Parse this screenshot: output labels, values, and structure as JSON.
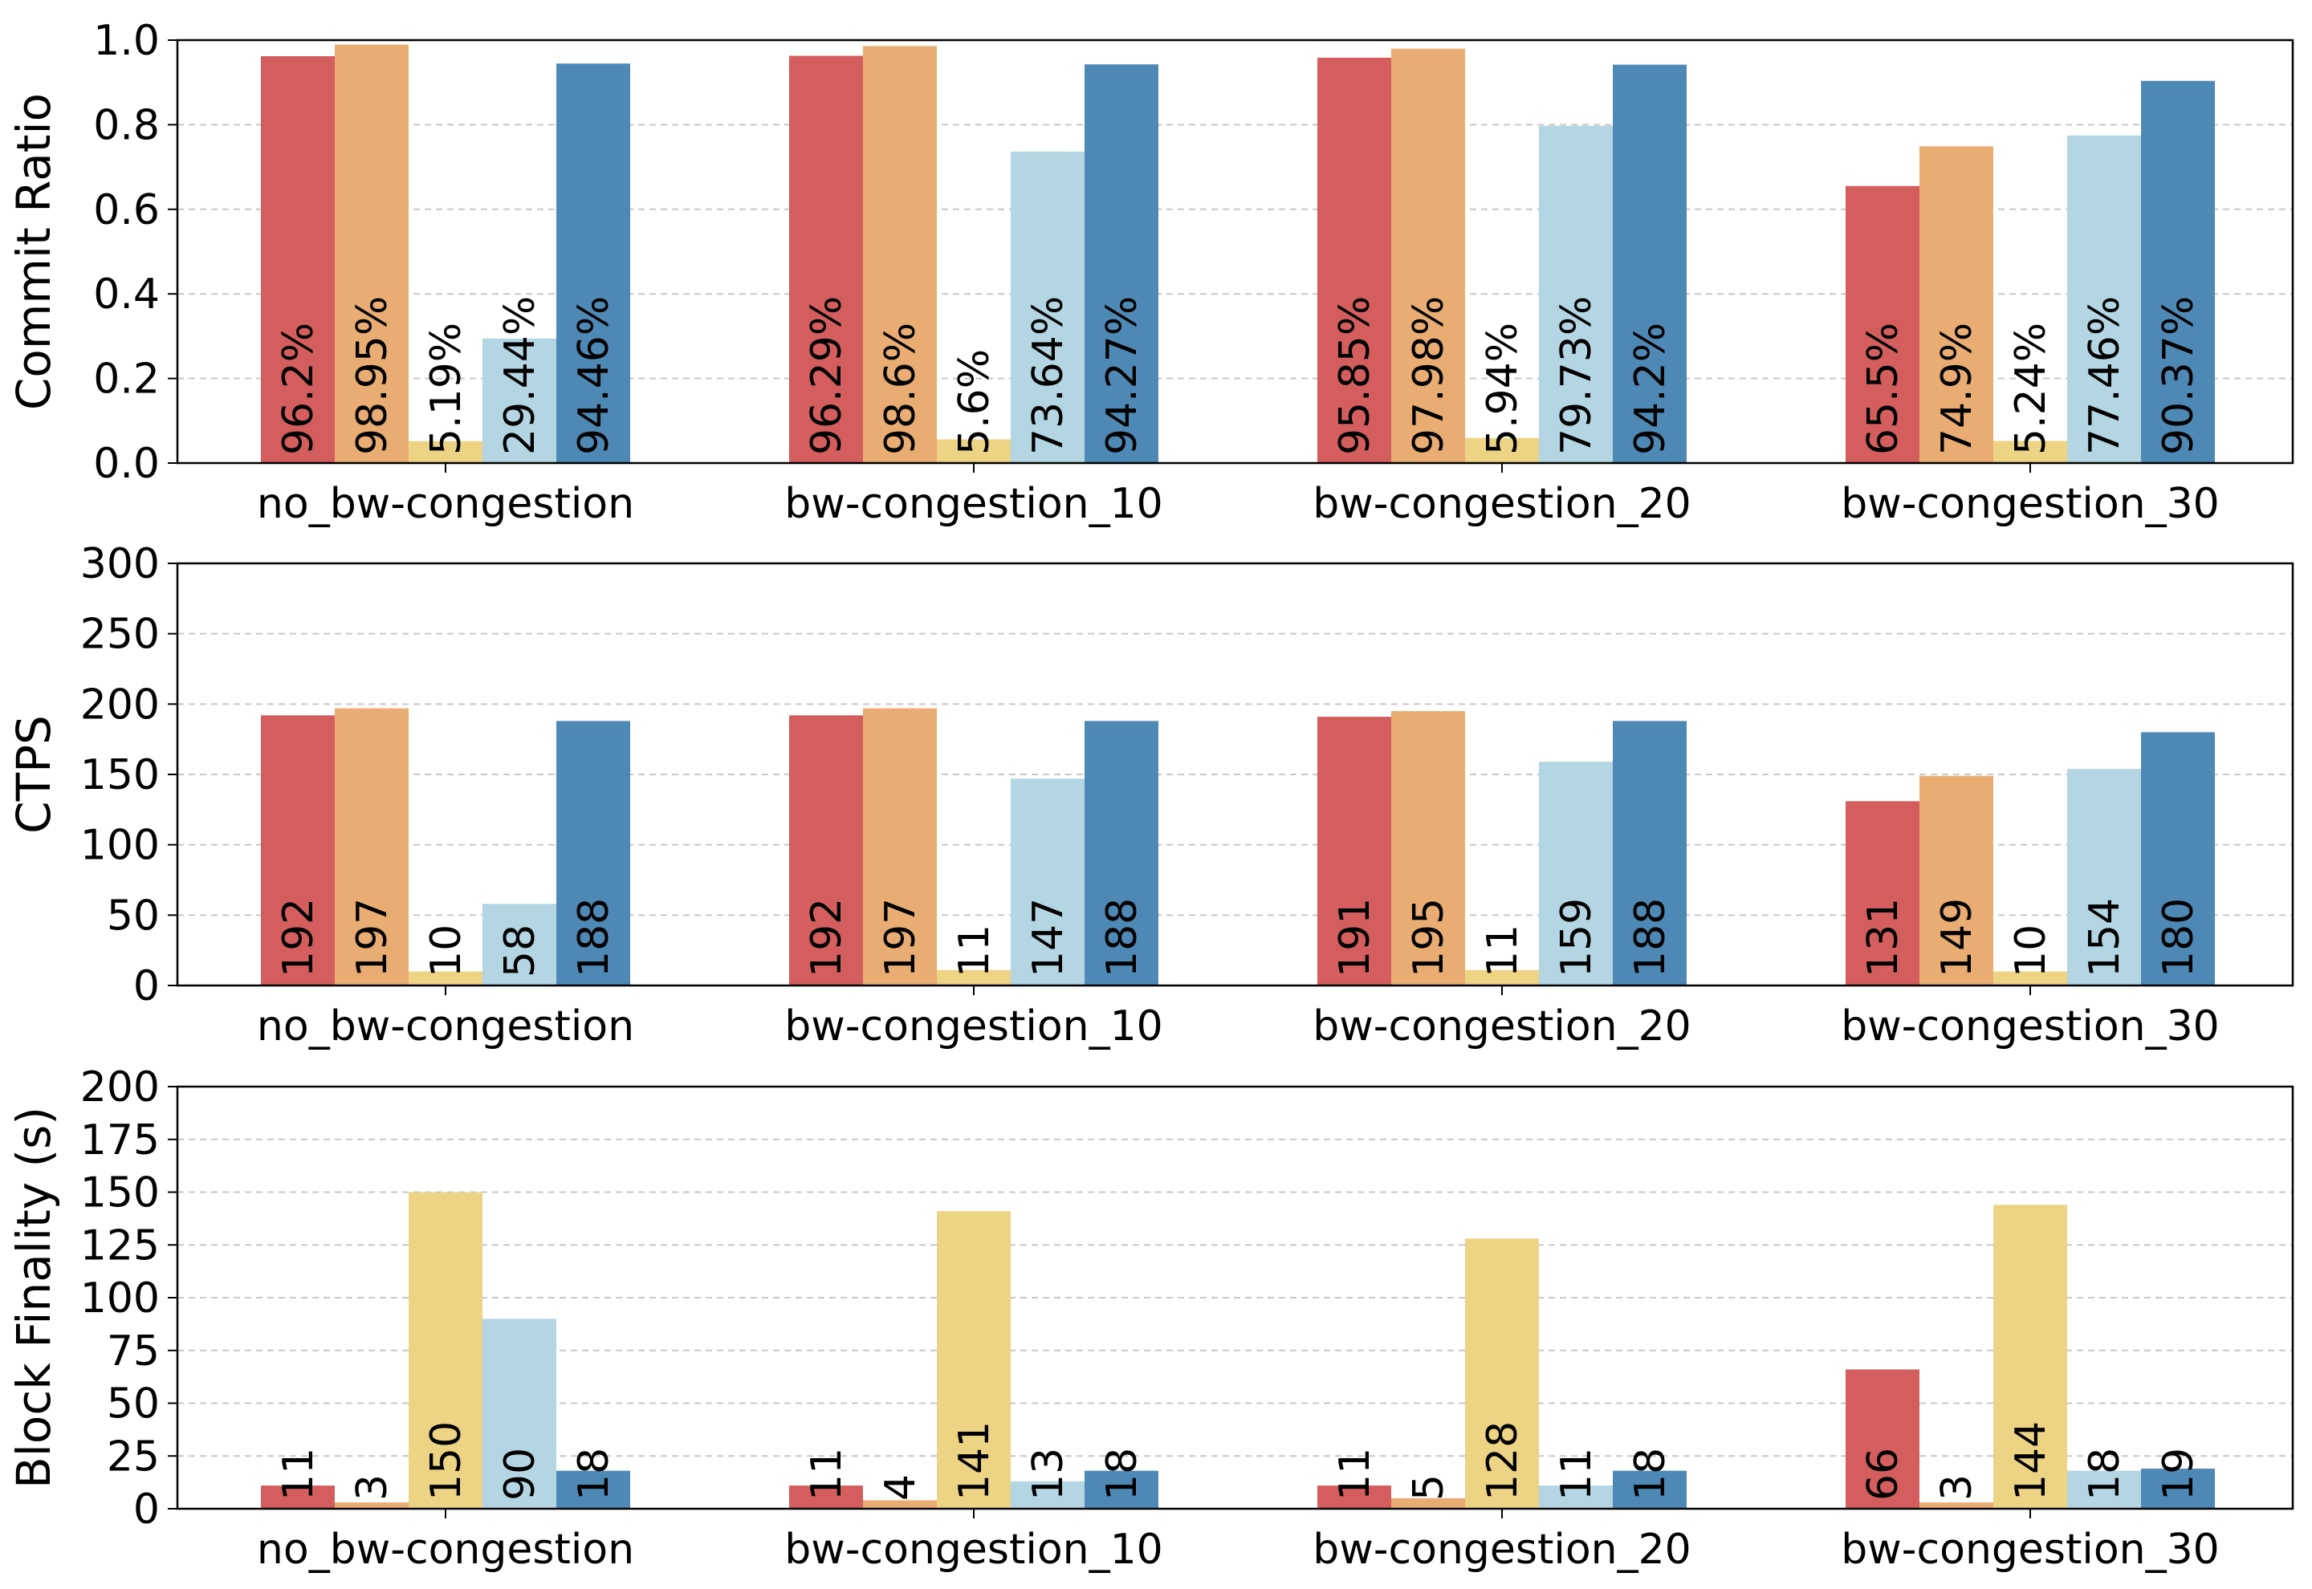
{
  "colors": [
    "#d45e5e",
    "#e9ad73",
    "#edd384",
    "#b3d6e2",
    "#4e89b6"
  ],
  "chart_data": [
    {
      "type": "bar",
      "ylabel": "Commit Ratio",
      "ylim": [
        0,
        1.0
      ],
      "yticks": [
        "0.0",
        "0.2",
        "0.4",
        "0.6",
        "0.8",
        "1.0"
      ],
      "grid": true,
      "categories": [
        "no_bw-congestion",
        "bw-congestion_10",
        "bw-congestion_20",
        "bw-congestion_30"
      ],
      "series": [
        {
          "values": [
            0.962,
            0.9629,
            0.9585,
            0.655
          ],
          "labels": [
            "96.2%",
            "96.29%",
            "95.85%",
            "65.5%"
          ]
        },
        {
          "values": [
            0.9895,
            0.986,
            0.9798,
            0.749
          ],
          "labels": [
            "98.95%",
            "98.6%",
            "97.98%",
            "74.9%"
          ]
        },
        {
          "values": [
            0.0519,
            0.056,
            0.0594,
            0.0524
          ],
          "labels": [
            "5.19%",
            "5.6%",
            "5.94%",
            "5.24%"
          ]
        },
        {
          "values": [
            0.2944,
            0.7364,
            0.7973,
            0.7746
          ],
          "labels": [
            "29.44%",
            "73.64%",
            "79.73%",
            "77.46%"
          ]
        },
        {
          "values": [
            0.9446,
            0.9427,
            0.942,
            0.9037
          ],
          "labels": [
            "94.46%",
            "94.27%",
            "94.2%",
            "90.37%"
          ]
        }
      ]
    },
    {
      "type": "bar",
      "ylabel": "CTPS",
      "ylim": [
        0,
        300
      ],
      "yticks": [
        "0",
        "50",
        "100",
        "150",
        "200",
        "250",
        "300"
      ],
      "grid": true,
      "categories": [
        "no_bw-congestion",
        "bw-congestion_10",
        "bw-congestion_20",
        "bw-congestion_30"
      ],
      "series": [
        {
          "values": [
            192,
            192,
            191,
            131
          ],
          "labels": [
            "192",
            "192",
            "191",
            "131"
          ]
        },
        {
          "values": [
            197,
            197,
            195,
            149
          ],
          "labels": [
            "197",
            "197",
            "195",
            "149"
          ]
        },
        {
          "values": [
            10,
            11,
            11,
            10
          ],
          "labels": [
            "10",
            "11",
            "11",
            "10"
          ]
        },
        {
          "values": [
            58,
            147,
            159,
            154
          ],
          "labels": [
            "58",
            "147",
            "159",
            "154"
          ]
        },
        {
          "values": [
            188,
            188,
            188,
            180
          ],
          "labels": [
            "188",
            "188",
            "188",
            "180"
          ]
        }
      ]
    },
    {
      "type": "bar",
      "ylabel": "Block Finality (s)",
      "ylim": [
        0,
        200
      ],
      "yticks": [
        "0",
        "25",
        "50",
        "75",
        "100",
        "125",
        "150",
        "175",
        "200"
      ],
      "grid": true,
      "categories": [
        "no_bw-congestion",
        "bw-congestion_10",
        "bw-congestion_20",
        "bw-congestion_30"
      ],
      "series": [
        {
          "values": [
            11,
            11,
            11,
            66
          ],
          "labels": [
            "11",
            "11",
            "11",
            "66"
          ]
        },
        {
          "values": [
            3,
            4,
            5,
            3
          ],
          "labels": [
            "3",
            "4",
            "5",
            "3"
          ]
        },
        {
          "values": [
            150,
            141,
            128,
            144
          ],
          "labels": [
            "150",
            "141",
            "128",
            "144"
          ]
        },
        {
          "values": [
            90,
            13,
            11,
            18
          ],
          "labels": [
            "90",
            "13",
            "11",
            "18"
          ]
        },
        {
          "values": [
            18,
            18,
            18,
            19
          ],
          "labels": [
            "18",
            "18",
            "18",
            "19"
          ]
        }
      ]
    }
  ]
}
